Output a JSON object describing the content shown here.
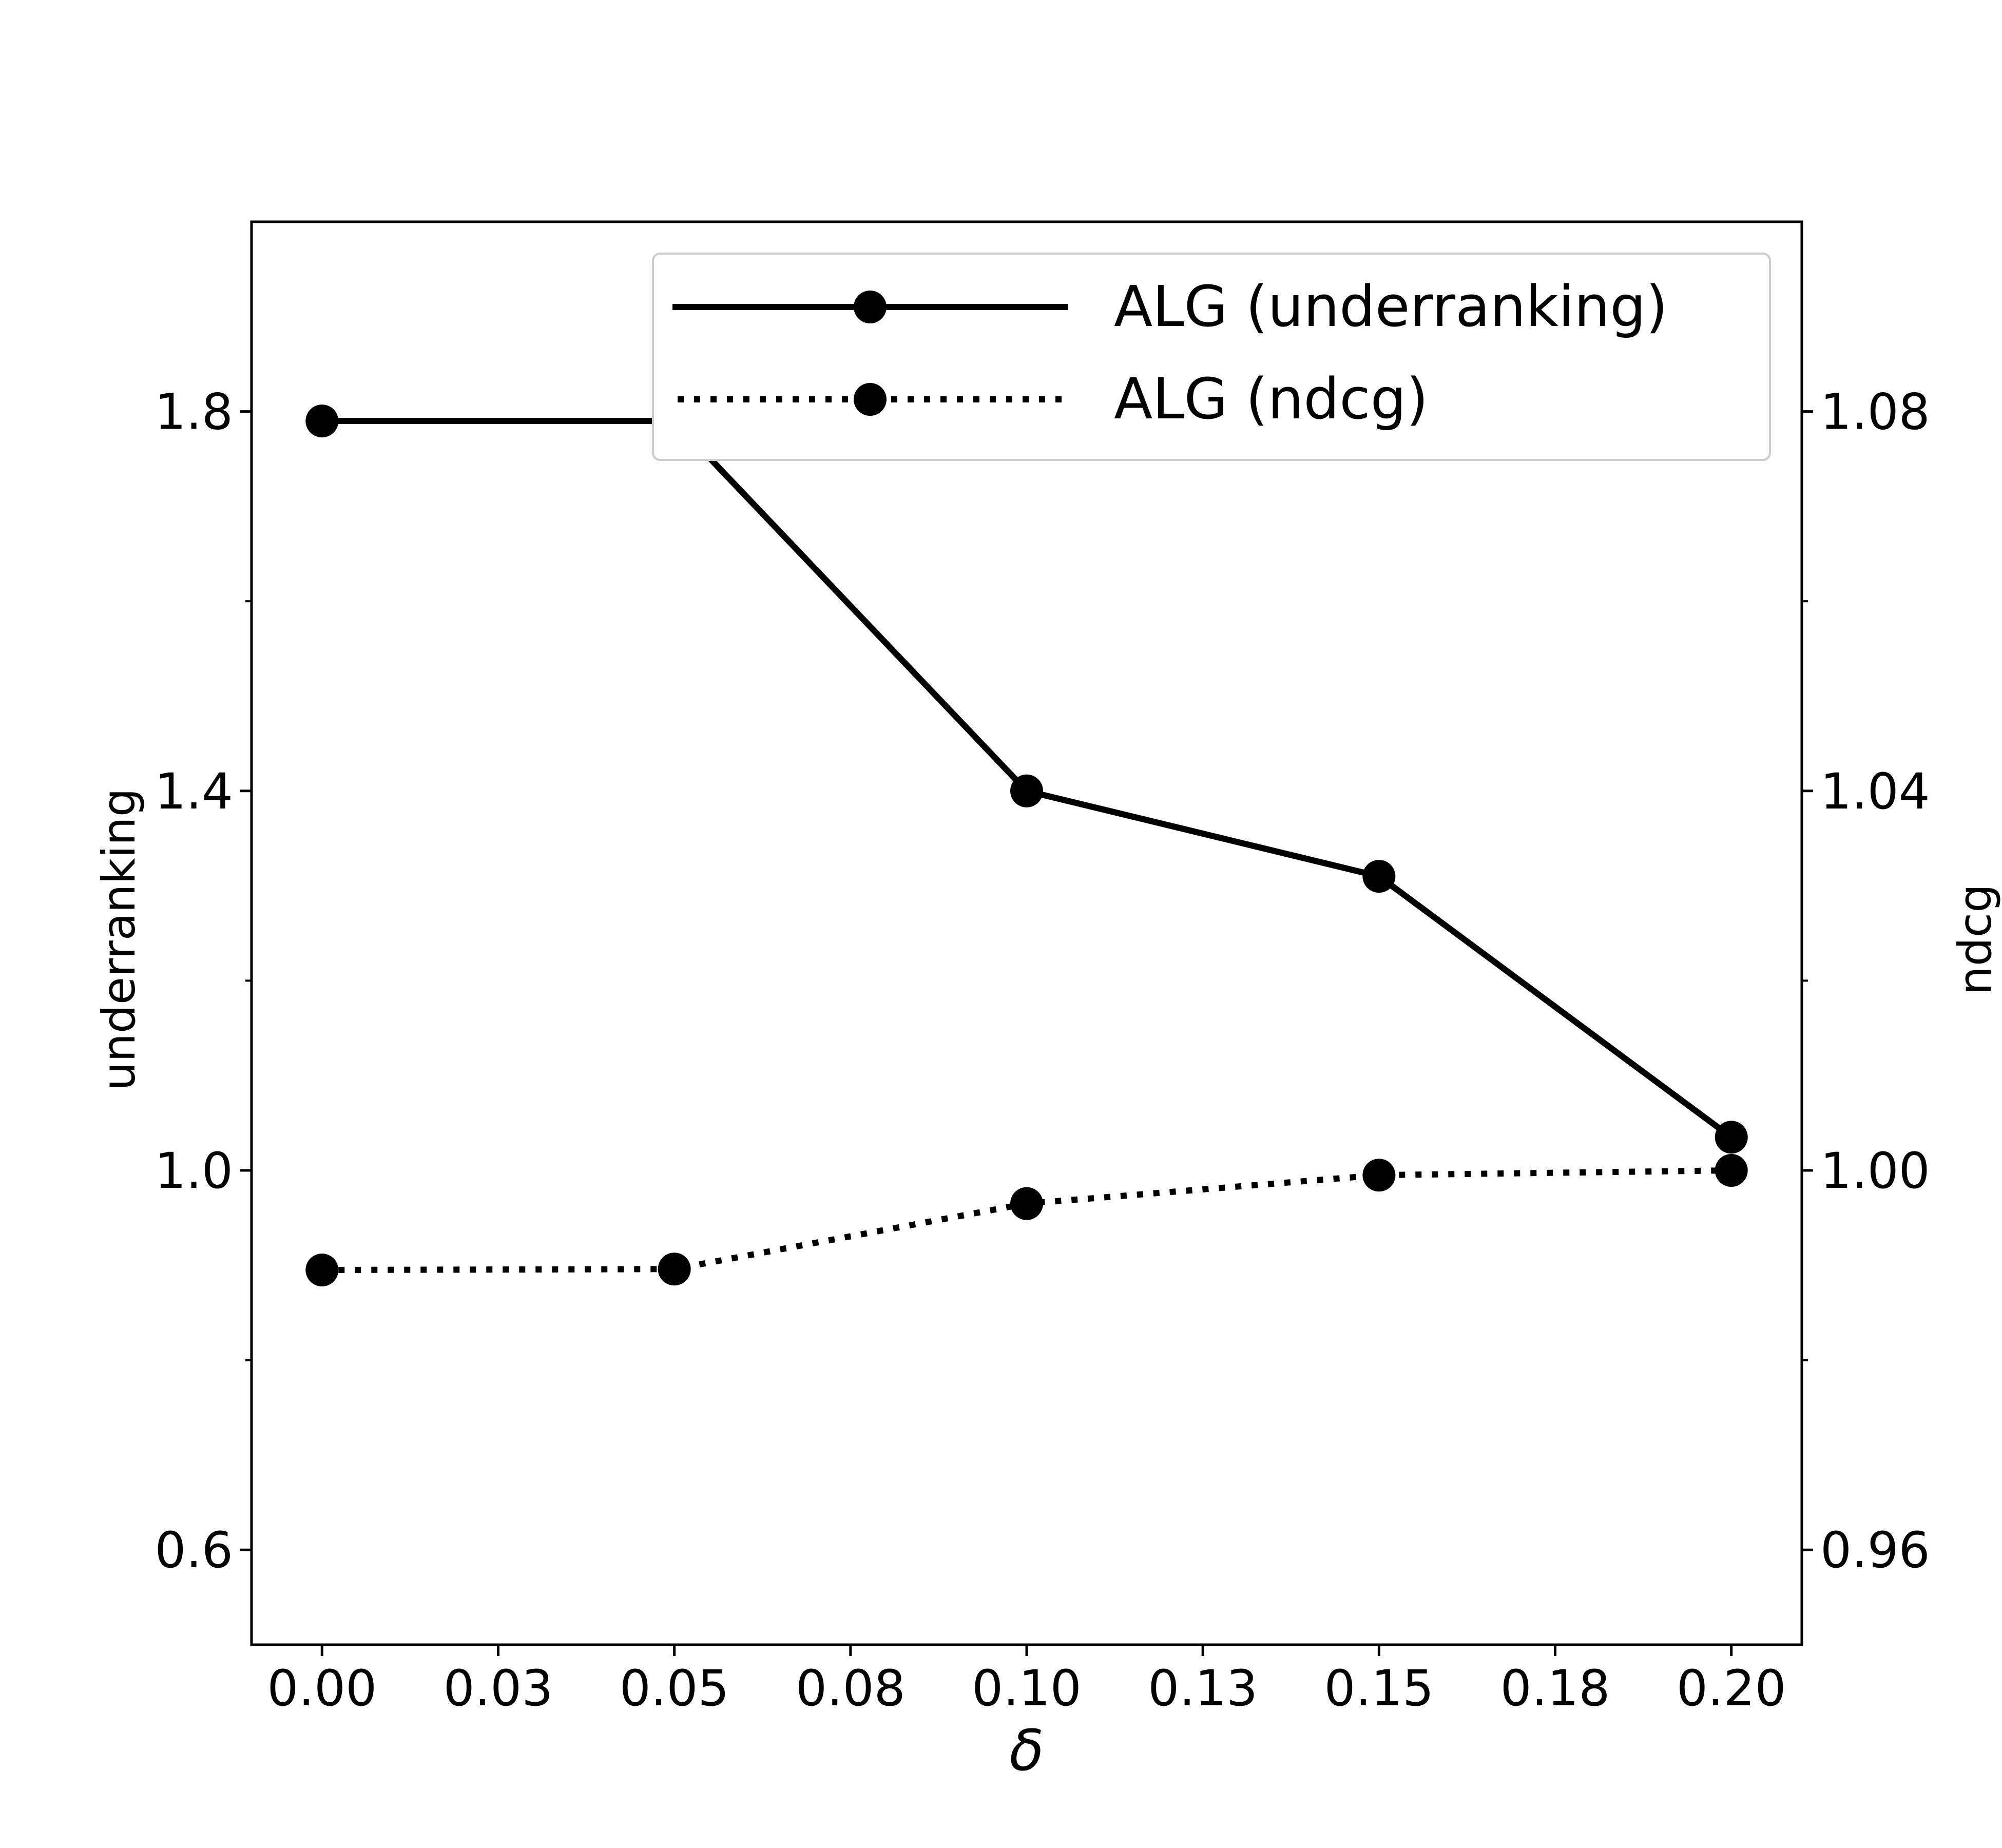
{
  "chart_data": {
    "type": "line",
    "x": [
      0.0,
      0.05,
      0.1,
      0.15,
      0.2
    ],
    "xlabel": "δ",
    "xlim": [
      -0.01,
      0.21
    ],
    "xticks": [
      0.0,
      0.025,
      0.05,
      0.075,
      0.1,
      0.125,
      0.15,
      0.175,
      0.2
    ],
    "xtick_labels": [
      "0.00",
      "0.03",
      "0.05",
      "0.08",
      "0.10",
      "0.13",
      "0.15",
      "0.18",
      "0.20"
    ],
    "left_axis": {
      "label": "underranking",
      "lim": [
        0.5,
        2.0
      ],
      "major_ticks": [
        0.6,
        1.0,
        1.4,
        1.8
      ],
      "major_labels": [
        "0.6",
        "1.0",
        "1.4",
        "1.8"
      ],
      "minor_ticks": [
        0.8,
        1.2,
        1.6
      ]
    },
    "right_axis": {
      "label": "ndcg",
      "lim": [
        0.95,
        1.1
      ],
      "major_ticks": [
        0.96,
        1.0,
        1.04,
        1.08
      ],
      "major_labels": [
        "0.96",
        "1.00",
        "1.04",
        "1.08"
      ],
      "minor_ticks": [
        0.98,
        1.02,
        1.06
      ]
    },
    "series": [
      {
        "name": "ALG (underranking)",
        "axis": "left",
        "style": "solid",
        "values": [
          1.79,
          1.79,
          1.4,
          1.31,
          1.035
        ]
      },
      {
        "name": "ALG (ndcg)",
        "axis": "right",
        "style": "dotted",
        "values": [
          0.9895,
          0.9896,
          0.9965,
          0.9995,
          1.0
        ]
      }
    ],
    "legend_position": "top-right",
    "colors": {
      "line": "#000000",
      "legend_border": "#cccccc"
    }
  }
}
